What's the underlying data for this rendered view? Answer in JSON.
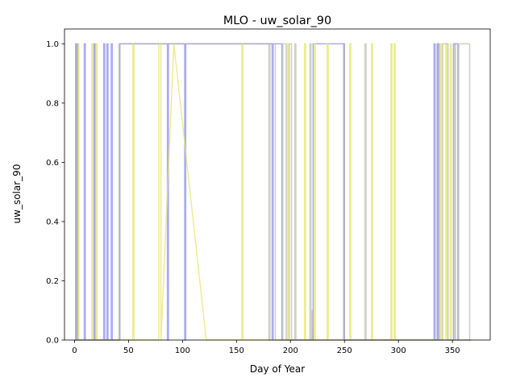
{
  "chart_data": {
    "type": "line",
    "title": "MLO - uw_solar_90",
    "xlabel": "Day of Year",
    "ylabel": "uw_solar_90",
    "xlim": [
      -9.3,
      385
    ],
    "ylim": [
      0,
      1.05
    ],
    "xticks": [
      0,
      50,
      100,
      150,
      200,
      250,
      300,
      350
    ],
    "yticks": [
      0.0,
      0.2,
      0.4,
      0.6,
      0.8,
      1.0
    ],
    "xtick_labels": [
      "0",
      "50",
      "100",
      "150",
      "200",
      "250",
      "300",
      "350"
    ],
    "ytick_labels": [
      "0.0",
      "0.2",
      "0.4",
      "0.6",
      "0.8",
      "1.0"
    ],
    "grid": false,
    "series": [
      {
        "color": "#6666ee",
        "opacity": 0.55,
        "points": [
          [
            0,
            0
          ],
          [
            1,
            0
          ],
          [
            1,
            1
          ],
          [
            2,
            1
          ],
          [
            2,
            0
          ],
          [
            9,
            0
          ],
          [
            9,
            1
          ],
          [
            10,
            1
          ],
          [
            10,
            0
          ],
          [
            18,
            0
          ],
          [
            18,
            1
          ],
          [
            19,
            1
          ],
          [
            19,
            0
          ],
          [
            27,
            0
          ],
          [
            27,
            1
          ],
          [
            28,
            1
          ],
          [
            28,
            0
          ],
          [
            30,
            0
          ],
          [
            30,
            1
          ],
          [
            31,
            1
          ],
          [
            31,
            0
          ],
          [
            34,
            0
          ],
          [
            34,
            1
          ],
          [
            35,
            1
          ],
          [
            35,
            0
          ],
          [
            42,
            0
          ],
          [
            42,
            1
          ],
          [
            86,
            1
          ],
          [
            86,
            0
          ],
          [
            87,
            0
          ],
          [
            87,
            1
          ],
          [
            102,
            1
          ],
          [
            102,
            0
          ],
          [
            103,
            0
          ],
          [
            103,
            1
          ],
          [
            183,
            1
          ],
          [
            183,
            0
          ],
          [
            184,
            0
          ],
          [
            184,
            1
          ],
          [
            192,
            1
          ],
          [
            192,
            0
          ],
          [
            221,
            0
          ],
          [
            221,
            1
          ],
          [
            250,
            1
          ],
          [
            250,
            0
          ],
          [
            333,
            0
          ],
          [
            333,
            1
          ],
          [
            334,
            1
          ],
          [
            334,
            0
          ],
          [
            336,
            0
          ],
          [
            336,
            1
          ],
          [
            337,
            1
          ],
          [
            337,
            0
          ],
          [
            351,
            0
          ],
          [
            351,
            1
          ],
          [
            355,
            1
          ],
          [
            355,
            0
          ],
          [
            367,
            0
          ]
        ]
      },
      {
        "color": "#e6e66e",
        "opacity": 0.75,
        "points": [
          [
            0,
            0
          ],
          [
            3,
            0
          ],
          [
            3,
            1
          ],
          [
            4,
            1
          ],
          [
            4,
            0
          ],
          [
            16,
            0
          ],
          [
            16,
            1
          ],
          [
            17,
            1
          ],
          [
            17,
            0
          ],
          [
            20,
            0
          ],
          [
            20,
            1
          ],
          [
            21,
            1
          ],
          [
            21,
            0
          ],
          [
            54,
            0
          ],
          [
            54,
            1
          ],
          [
            55,
            1
          ],
          [
            55,
            0
          ],
          [
            78,
            0
          ],
          [
            78,
            1
          ],
          [
            80,
            1
          ],
          [
            80,
            0
          ],
          [
            92,
            1
          ],
          [
            122,
            0
          ],
          [
            155,
            0
          ],
          [
            155,
            1
          ],
          [
            156,
            1
          ],
          [
            156,
            0
          ],
          [
            197,
            0
          ],
          [
            197,
            1
          ],
          [
            198,
            1
          ],
          [
            198,
            0
          ],
          [
            213,
            0
          ],
          [
            213,
            1
          ],
          [
            214,
            1
          ],
          [
            214,
            0
          ],
          [
            222,
            0
          ],
          [
            222,
            1
          ],
          [
            223,
            1
          ],
          [
            223,
            0
          ],
          [
            234,
            0
          ],
          [
            234,
            1
          ],
          [
            235,
            1
          ],
          [
            235,
            0
          ],
          [
            255,
            0
          ],
          [
            255,
            1
          ],
          [
            256,
            1
          ],
          [
            256,
            0
          ],
          [
            275,
            0
          ],
          [
            275,
            1
          ],
          [
            276,
            1
          ],
          [
            276,
            0
          ],
          [
            293,
            0
          ],
          [
            293,
            1
          ],
          [
            294,
            1
          ],
          [
            294,
            0
          ],
          [
            296,
            0
          ],
          [
            296,
            1
          ],
          [
            297,
            1
          ],
          [
            297,
            0
          ],
          [
            339,
            0
          ],
          [
            339,
            1
          ],
          [
            340,
            1
          ],
          [
            340,
            0
          ],
          [
            344,
            0
          ],
          [
            344,
            1
          ],
          [
            345,
            1
          ],
          [
            345,
            0
          ],
          [
            348,
            0
          ],
          [
            348,
            1
          ],
          [
            349,
            1
          ],
          [
            349,
            0
          ],
          [
            367,
            0
          ]
        ]
      },
      {
        "color": "#aaaa99",
        "opacity": 0.55,
        "points": [
          [
            0,
            0
          ],
          [
            2,
            0
          ],
          [
            2,
            1
          ],
          [
            3,
            1
          ],
          [
            3,
            0
          ],
          [
            41,
            0
          ],
          [
            41,
            1
          ],
          [
            180,
            1
          ],
          [
            180,
            0
          ],
          [
            181,
            0
          ],
          [
            181,
            1
          ],
          [
            186,
            1
          ],
          [
            186,
            0
          ],
          [
            193,
            0
          ],
          [
            193,
            1
          ],
          [
            196,
            1
          ],
          [
            196,
            0
          ],
          [
            199,
            0
          ],
          [
            199,
            1
          ],
          [
            201,
            1
          ],
          [
            201,
            0
          ],
          [
            204,
            0
          ],
          [
            204,
            1
          ],
          [
            205,
            1
          ],
          [
            205,
            0
          ],
          [
            218,
            0
          ],
          [
            218,
            1
          ],
          [
            219,
            1
          ],
          [
            219,
            0
          ],
          [
            220,
            0
          ],
          [
            220,
            0.1
          ],
          [
            221,
            0
          ],
          [
            249,
            0
          ],
          [
            249,
            1
          ],
          [
            250,
            1
          ],
          [
            250,
            0
          ],
          [
            269,
            0
          ],
          [
            269,
            1
          ],
          [
            270,
            1
          ],
          [
            270,
            0
          ],
          [
            336,
            0
          ],
          [
            336,
            1
          ],
          [
            338,
            1
          ],
          [
            338,
            0
          ],
          [
            341,
            0
          ],
          [
            341,
            1
          ],
          [
            346,
            1
          ],
          [
            346,
            0
          ],
          [
            352,
            0
          ],
          [
            352,
            1
          ],
          [
            353,
            1
          ],
          [
            353,
            0
          ],
          [
            356,
            0
          ],
          [
            356,
            1
          ],
          [
            366,
            1
          ],
          [
            366,
            0
          ],
          [
            367,
            0
          ]
        ]
      }
    ]
  }
}
